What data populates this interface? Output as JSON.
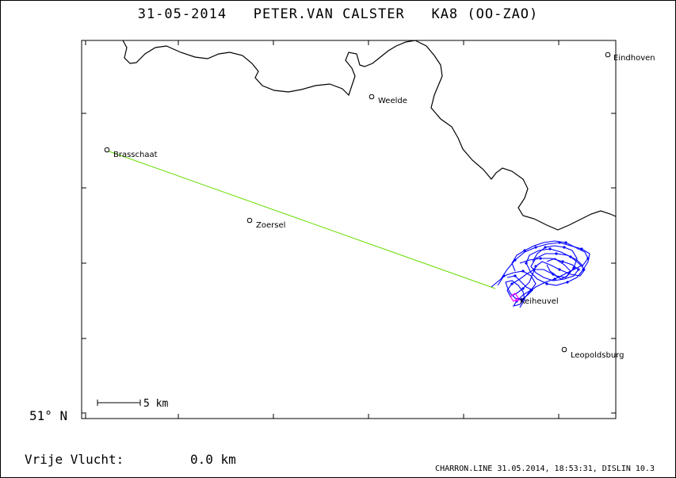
{
  "header": {
    "title": "31-05-2014   PETER.VAN CALSTER   KA8 (OO-ZAO)"
  },
  "map": {
    "lat_label": "51° N",
    "scale_label": "5 km",
    "cities": [
      {
        "name": "Eindhoven"
      },
      {
        "name": "Weelde"
      },
      {
        "name": "Brasschaat"
      },
      {
        "name": "Zoersel"
      },
      {
        "name": "Keiheuvel"
      },
      {
        "name": "Leopoldsburg"
      }
    ],
    "colors": {
      "border": "#000000",
      "track": "#0000ff",
      "straight_line": "#66dd00",
      "marker": "#ff00ff"
    }
  },
  "summary": {
    "label": "Vrije Vlucht:",
    "value": "0.0 km"
  },
  "footer": {
    "text": "CHARRON.LINE 31.05.2014, 18:53:31, DISLIN 10.3"
  }
}
